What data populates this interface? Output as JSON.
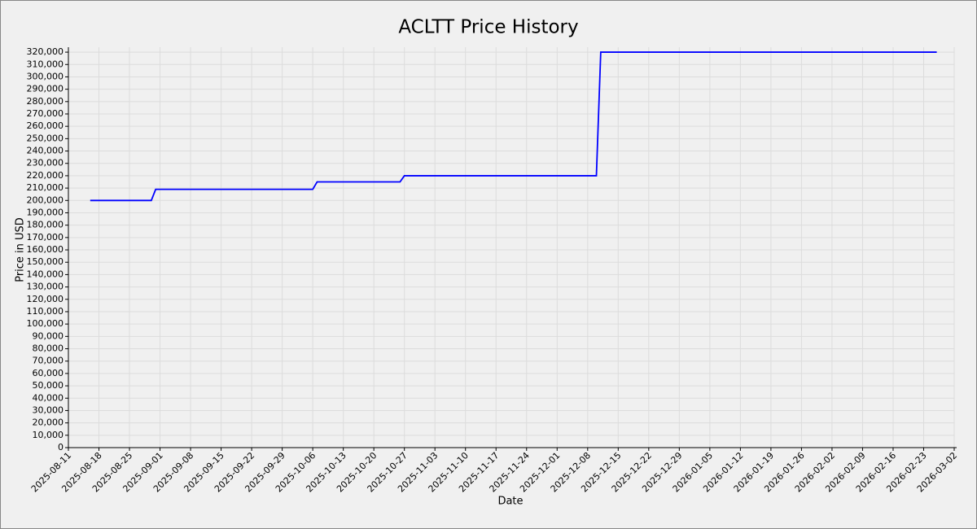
{
  "chart_data": {
    "type": "line",
    "title": "ACLTT Price History",
    "x_label": "Date",
    "y_label": "Price in USD",
    "x": [
      "2025-08-16",
      "2025-08-30",
      "2025-08-31",
      "2025-10-06",
      "2025-10-07",
      "2025-10-26",
      "2025-10-27",
      "2025-12-10",
      "2025-12-11",
      "2026-02-26"
    ],
    "series": [
      {
        "name": "ACLTT",
        "color": "#0000ff",
        "values": [
          200000,
          200000,
          209000,
          209000,
          215000,
          215000,
          220000,
          220000,
          320000,
          320000
        ]
      }
    ],
    "xlim": [
      "2025-08-11",
      "2026-03-02"
    ],
    "xticks": [
      "2025-08-11",
      "2025-08-18",
      "2025-08-25",
      "2025-09-01",
      "2025-09-08",
      "2025-09-15",
      "2025-09-22",
      "2025-09-29",
      "2025-10-06",
      "2025-10-13",
      "2025-10-20",
      "2025-10-27",
      "2025-11-03",
      "2025-11-10",
      "2025-11-17",
      "2025-11-24",
      "2025-12-01",
      "2025-12-08",
      "2025-12-15",
      "2025-12-22",
      "2025-12-29",
      "2026-01-05",
      "2026-01-12",
      "2026-01-19",
      "2026-01-26",
      "2026-02-02",
      "2026-02-09",
      "2026-02-16",
      "2026-02-23",
      "2026-03-02"
    ],
    "ylim": [
      0,
      324000
    ],
    "yticks": [
      0,
      {
        "value": 10000,
        "label": "10,000"
      },
      {
        "value": 20000,
        "label": "20,000"
      },
      {
        "value": 30000,
        "label": "30,000"
      },
      {
        "value": 40000,
        "label": "40,000"
      },
      {
        "value": 50000,
        "label": "50,000"
      },
      {
        "value": 60000,
        "label": "60,000"
      },
      {
        "value": 70000,
        "label": "70,000"
      },
      {
        "value": 80000,
        "label": "80,000"
      },
      {
        "value": 90000,
        "label": "90,000"
      },
      {
        "value": 100000,
        "label": "100,000"
      },
      {
        "value": 110000,
        "label": "110,000"
      },
      {
        "value": 120000,
        "label": "120,000"
      },
      {
        "value": 130000,
        "label": "130,000"
      },
      {
        "value": 140000,
        "label": "140,000"
      },
      {
        "value": 150000,
        "label": "150,000"
      },
      {
        "value": 160000,
        "label": "160,000"
      },
      {
        "value": 170000,
        "label": "170,000"
      },
      {
        "value": 180000,
        "label": "180,000"
      },
      {
        "value": 190000,
        "label": "190,000"
      },
      {
        "value": 200000,
        "label": "200,000"
      },
      {
        "value": 210000,
        "label": "210,000"
      },
      {
        "value": 220000,
        "label": "220,000"
      },
      {
        "value": 230000,
        "label": "230,000"
      },
      {
        "value": 240000,
        "label": "240,000"
      },
      {
        "value": 250000,
        "label": "250,000"
      },
      {
        "value": 260000,
        "label": "260,000"
      },
      {
        "value": 270000,
        "label": "270,000"
      },
      {
        "value": 280000,
        "label": "280,000"
      },
      {
        "value": 290000,
        "label": "290,000"
      },
      {
        "value": 300000,
        "label": "300,000"
      },
      {
        "value": 310000,
        "label": "310,000"
      },
      {
        "value": 320000,
        "label": "320,000"
      }
    ],
    "grid": true
  }
}
